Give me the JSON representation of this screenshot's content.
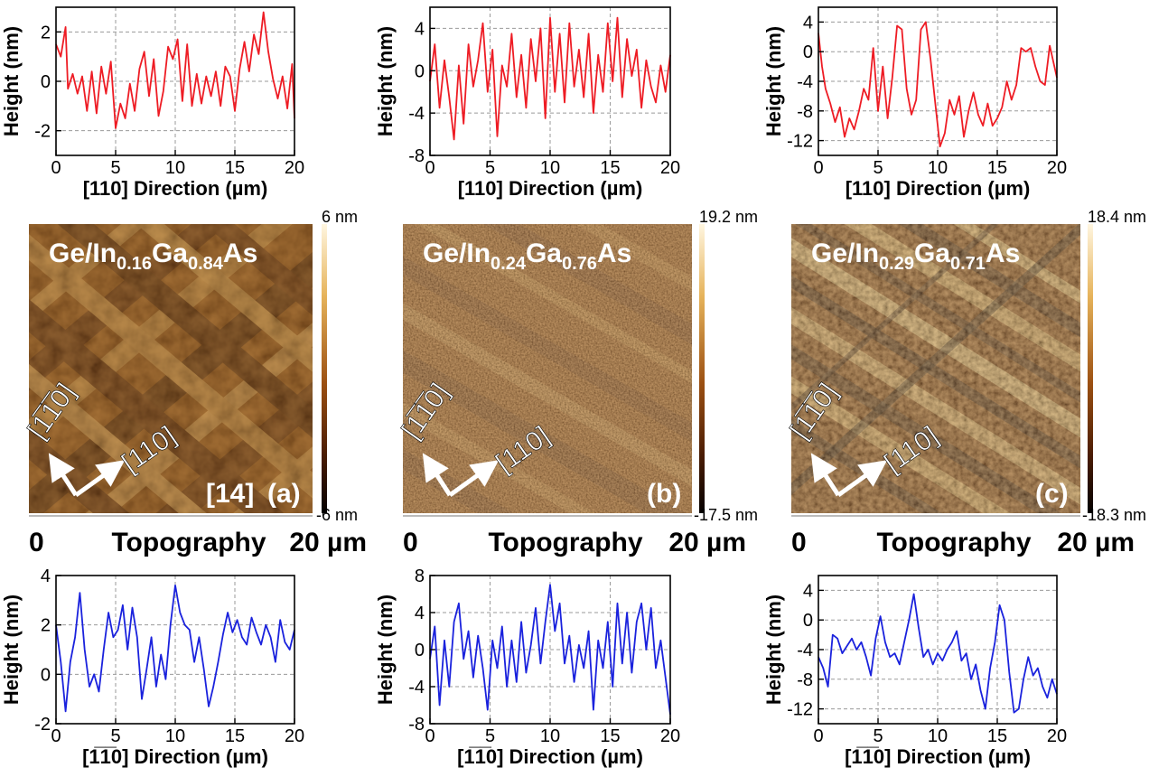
{
  "colors": {
    "profile_110": "#ee1c24",
    "profile_1m10": "#1a22dd",
    "afm_dark": "#1e0c03",
    "afm_mid": "#8a4a12",
    "afm_light": "#f2d9a0",
    "grid": "#9a9a9a"
  },
  "chart_data": [
    {
      "id": "a-top",
      "type": "line",
      "series_color": "#ee1c24",
      "xlabel": "[110] Direction (µm)",
      "ylabel": "Height (nm)",
      "xlim": [
        0,
        20
      ],
      "ylim": [
        -3,
        3
      ],
      "xticks": [
        "0",
        "5",
        "10",
        "15",
        "20"
      ],
      "xtick_values": [
        0,
        5,
        10,
        15,
        20
      ],
      "yticks": [
        "-2",
        "0",
        "2"
      ],
      "ytick_values": [
        -2,
        0,
        2
      ],
      "grid": true,
      "x": [
        0,
        0.4,
        0.8,
        1.0,
        1.4,
        1.8,
        2.2,
        2.6,
        3.0,
        3.4,
        3.8,
        4.2,
        4.6,
        5.0,
        5.4,
        5.8,
        6.2,
        6.6,
        7.0,
        7.4,
        7.8,
        8.2,
        8.6,
        9.0,
        9.4,
        9.8,
        10.2,
        10.6,
        11.0,
        11.4,
        11.8,
        12.2,
        12.6,
        13.0,
        13.4,
        13.8,
        14.2,
        14.6,
        15.0,
        15.4,
        15.8,
        16.2,
        16.6,
        17.0,
        17.4,
        17.8,
        18.2,
        18.6,
        19.0,
        19.4,
        19.8,
        20.0
      ],
      "y": [
        1.5,
        1.0,
        2.2,
        -0.3,
        0.3,
        -0.5,
        0.2,
        -1.2,
        0.4,
        -1.3,
        0.6,
        -0.5,
        0.8,
        -1.9,
        -0.9,
        -1.5,
        -0.1,
        -1.2,
        0.5,
        1.2,
        -0.6,
        0.9,
        -1.4,
        -0.4,
        1.4,
        0.9,
        1.7,
        -0.8,
        1.5,
        -1.0,
        0.3,
        -0.9,
        0.2,
        -0.6,
        0.4,
        -1.0,
        0.6,
        0.2,
        -1.2,
        0.5,
        1.6,
        0.4,
        1.9,
        1.1,
        2.8,
        1.2,
        0.1,
        -0.7,
        0.2,
        -1.1,
        0.7,
        -1.5
      ]
    },
    {
      "id": "b-top",
      "type": "line",
      "series_color": "#ee1c24",
      "xlabel": "[110] Direction (µm)",
      "ylabel": "Height (nm)",
      "xlim": [
        0,
        20
      ],
      "ylim": [
        -8,
        6
      ],
      "xticks": [
        "0",
        "5",
        "10",
        "15",
        "20"
      ],
      "xtick_values": [
        0,
        5,
        10,
        15,
        20
      ],
      "yticks": [
        "-8",
        "-4",
        "0",
        "4"
      ],
      "ytick_values": [
        -8,
        -4,
        0,
        4
      ],
      "grid": true,
      "x": [
        0,
        0.4,
        0.8,
        1.2,
        1.6,
        2.0,
        2.4,
        2.8,
        3.2,
        3.6,
        4.0,
        4.4,
        4.8,
        5.2,
        5.6,
        6.0,
        6.4,
        6.8,
        7.2,
        7.6,
        8.0,
        8.4,
        8.8,
        9.2,
        9.6,
        10.0,
        10.4,
        10.8,
        11.2,
        11.6,
        12.0,
        12.4,
        12.8,
        13.2,
        13.6,
        14.0,
        14.4,
        14.8,
        15.2,
        15.6,
        16.0,
        16.4,
        16.8,
        17.2,
        17.6,
        18.0,
        18.4,
        18.8,
        19.2,
        19.6,
        20.0
      ],
      "y": [
        -1.0,
        2.5,
        -3.5,
        1.0,
        -2.5,
        -6.5,
        0.5,
        -5.0,
        2.5,
        -1.5,
        1.0,
        4.5,
        -2.0,
        2.0,
        -6.2,
        0.5,
        -1.5,
        3.5,
        -2.5,
        1.5,
        -3.5,
        3.0,
        -1.0,
        4.0,
        -4.5,
        5.0,
        -2.0,
        3.5,
        -3.0,
        4.5,
        -1.5,
        2.0,
        -2.5,
        3.5,
        -4.0,
        1.5,
        -2.0,
        4.5,
        -1.0,
        5.0,
        -2.5,
        3.0,
        -0.5,
        2.0,
        -3.5,
        1.0,
        -1.5,
        -3.0,
        0.5,
        -2.0,
        1.5
      ]
    },
    {
      "id": "c-top",
      "type": "line",
      "series_color": "#ee1c24",
      "xlabel": "[110] Direction (µm)",
      "ylabel": "Height (nm)",
      "xlim": [
        0,
        20
      ],
      "ylim": [
        -14,
        6
      ],
      "xticks": [
        "0",
        "5",
        "10",
        "15",
        "20"
      ],
      "xtick_values": [
        0,
        5,
        10,
        15,
        20
      ],
      "yticks": [
        "-12",
        "-8",
        "-4",
        "0",
        "4"
      ],
      "ytick_values": [
        -12,
        -8,
        -4,
        0,
        4
      ],
      "grid": true,
      "x": [
        0,
        0.3,
        0.6,
        1.0,
        1.4,
        1.8,
        2.2,
        2.6,
        3.0,
        3.4,
        3.8,
        4.2,
        4.6,
        5.0,
        5.4,
        5.8,
        6.2,
        6.6,
        7.0,
        7.4,
        7.8,
        8.2,
        8.6,
        9.0,
        9.4,
        9.8,
        10.2,
        10.6,
        11.0,
        11.4,
        11.8,
        12.2,
        12.6,
        13.0,
        13.4,
        13.8,
        14.2,
        14.6,
        15.0,
        15.4,
        15.8,
        16.2,
        16.6,
        17.0,
        17.4,
        17.8,
        18.2,
        18.6,
        19.0,
        19.4,
        20.0
      ],
      "y": [
        2.5,
        -2.0,
        -5.0,
        -7.0,
        -9.5,
        -7.5,
        -11.5,
        -9.0,
        -10.5,
        -8.0,
        -5.0,
        -6.5,
        0.5,
        -8.0,
        -2.0,
        -9.0,
        -3.5,
        3.5,
        3.0,
        -5.0,
        -8.5,
        -6.5,
        3.0,
        4.0,
        -1.0,
        -7.0,
        -12.8,
        -11.0,
        -6.5,
        -8.5,
        -6.0,
        -11.5,
        -8.0,
        -5.5,
        -8.5,
        -10.0,
        -7.0,
        -10.0,
        -9.0,
        -7.5,
        -4.0,
        -6.5,
        -4.5,
        0.5,
        0.0,
        0.5,
        -2.0,
        -4.0,
        -4.5,
        0.8,
        -3.5
      ]
    },
    {
      "id": "a-bottom",
      "type": "line",
      "series_color": "#1a22dd",
      "xlabel": "[1̅1̅0] Direction (µm)",
      "ylabel": "Height (nm)",
      "xlim": [
        0,
        20
      ],
      "ylim": [
        -2,
        4
      ],
      "xticks": [
        "0",
        "5",
        "10",
        "15",
        "20"
      ],
      "xtick_values": [
        0,
        5,
        10,
        15,
        20
      ],
      "yticks": [
        "-2",
        "0",
        "2",
        "4"
      ],
      "ytick_values": [
        -2,
        0,
        2,
        4
      ],
      "grid": true,
      "x": [
        0,
        0.4,
        0.8,
        1.2,
        1.6,
        2.0,
        2.4,
        2.8,
        3.2,
        3.6,
        4.0,
        4.4,
        4.8,
        5.2,
        5.6,
        6.0,
        6.4,
        6.8,
        7.2,
        7.6,
        8.0,
        8.4,
        8.8,
        9.2,
        9.6,
        10.0,
        10.4,
        10.8,
        11.2,
        11.6,
        12.0,
        12.4,
        12.8,
        13.2,
        13.6,
        14.0,
        14.4,
        14.8,
        15.2,
        15.6,
        16.0,
        16.4,
        16.8,
        17.2,
        17.6,
        18.0,
        18.4,
        18.8,
        19.2,
        19.6,
        20.0
      ],
      "y": [
        2.0,
        0.5,
        -1.5,
        0.5,
        1.5,
        3.3,
        1.0,
        -0.5,
        0.0,
        -0.7,
        1.0,
        2.5,
        1.5,
        1.8,
        2.8,
        1.0,
        2.7,
        1.5,
        -1.0,
        0.2,
        1.5,
        -0.5,
        0.8,
        -0.2,
        2.0,
        3.6,
        2.5,
        2.0,
        1.8,
        0.5,
        1.5,
        0.2,
        -1.3,
        -0.5,
        0.5,
        1.6,
        2.5,
        1.7,
        2.2,
        1.5,
        1.2,
        2.3,
        1.7,
        1.2,
        2.0,
        1.5,
        0.5,
        2.2,
        1.3,
        1.0,
        1.8
      ]
    },
    {
      "id": "b-bottom",
      "type": "line",
      "series_color": "#1a22dd",
      "xlabel": "[1̅1̅0] Direction (µm)",
      "ylabel": "Height (nm)",
      "xlim": [
        0,
        20
      ],
      "ylim": [
        -8,
        8
      ],
      "xticks": [
        "0",
        "5",
        "10",
        "15",
        "20"
      ],
      "xtick_values": [
        0,
        5,
        10,
        15,
        20
      ],
      "yticks": [
        "-8",
        "-4",
        "0",
        "4",
        "8"
      ],
      "ytick_values": [
        -8,
        -4,
        0,
        4,
        8
      ],
      "grid": true,
      "x": [
        0,
        0.4,
        0.8,
        1.2,
        1.6,
        2.0,
        2.4,
        2.8,
        3.2,
        3.6,
        4.0,
        4.4,
        4.8,
        5.2,
        5.6,
        6.0,
        6.4,
        6.8,
        7.2,
        7.6,
        8.0,
        8.4,
        8.8,
        9.2,
        9.6,
        10.0,
        10.4,
        10.8,
        11.2,
        11.6,
        12.0,
        12.4,
        12.8,
        13.2,
        13.6,
        14.0,
        14.4,
        14.8,
        15.2,
        15.6,
        16.0,
        16.4,
        16.8,
        17.2,
        17.6,
        18.0,
        18.4,
        18.8,
        19.2,
        19.6,
        20.0
      ],
      "y": [
        -1.0,
        2.5,
        -6.0,
        1.0,
        -4.0,
        3.0,
        5.0,
        -1.0,
        2.0,
        -3.0,
        1.5,
        -2.0,
        -6.5,
        1.0,
        -2.0,
        2.5,
        -4.0,
        1.0,
        -3.5,
        3.0,
        -2.5,
        0.5,
        4.5,
        -1.5,
        3.0,
        7.0,
        2.0,
        5.0,
        -1.5,
        1.5,
        -3.5,
        0.5,
        -2.0,
        2.0,
        -6.5,
        1.0,
        -2.0,
        3.0,
        -4.0,
        5.0,
        -1.5,
        4.0,
        -2.5,
        3.0,
        5.0,
        0.0,
        4.5,
        -2.0,
        1.0,
        -3.0,
        -7.0
      ]
    },
    {
      "id": "c-bottom",
      "type": "line",
      "series_color": "#1a22dd",
      "xlabel": "[1̅1̅0] Direction (µm)",
      "ylabel": "Height (nm)",
      "xlim": [
        0,
        20
      ],
      "ylim": [
        -14,
        6
      ],
      "xticks": [
        "0",
        "5",
        "10",
        "15",
        "20"
      ],
      "xtick_values": [
        0,
        5,
        10,
        15,
        20
      ],
      "yticks": [
        "-12",
        "-8",
        "-4",
        "0",
        "4"
      ],
      "ytick_values": [
        -12,
        -8,
        -4,
        0,
        4
      ],
      "grid": true,
      "x": [
        0,
        0.4,
        0.8,
        1.2,
        1.6,
        2.0,
        2.4,
        2.8,
        3.2,
        3.6,
        4.0,
        4.4,
        4.8,
        5.2,
        5.6,
        6.0,
        6.4,
        6.8,
        7.2,
        7.6,
        8.0,
        8.4,
        8.8,
        9.2,
        9.6,
        10.0,
        10.4,
        10.8,
        11.2,
        11.6,
        12.0,
        12.4,
        12.8,
        13.2,
        13.6,
        14.0,
        14.4,
        14.8,
        15.2,
        15.6,
        16.0,
        16.4,
        16.8,
        17.2,
        17.6,
        18.0,
        18.4,
        18.8,
        19.2,
        19.6,
        20.0
      ],
      "y": [
        -5.0,
        -6.5,
        -9.0,
        -2.0,
        -2.5,
        -4.5,
        -3.5,
        -2.5,
        -4.0,
        -3.0,
        -5.0,
        -7.5,
        -2.5,
        0.5,
        -3.0,
        -5.0,
        -4.5,
        -6.0,
        -3.0,
        0.0,
        3.5,
        -1.0,
        -5.0,
        -4.0,
        -6.0,
        -4.5,
        -5.5,
        -4.0,
        -3.0,
        -1.5,
        -5.5,
        -4.5,
        -8.0,
        -6.0,
        -9.5,
        -12.0,
        -6.5,
        -3.0,
        2.0,
        0.0,
        -7.0,
        -12.5,
        -12.0,
        -8.0,
        -5.0,
        -7.5,
        -6.5,
        -9.0,
        -10.5,
        -8.0,
        -10.0
      ]
    }
  ],
  "afm_images": [
    {
      "id": "a",
      "sample": {
        "base": "Ge/In",
        "sub1": "0.16",
        "mid": "Ga",
        "sub2": "0.84",
        "tail": "As"
      },
      "colorbar_max": "6 nm",
      "colorbar_min": "-6 nm",
      "dir_1m10": "[1̅1̅0]",
      "dir_110": "[110]",
      "reference": "[14]",
      "panel_label": "(a)",
      "scale_start": "0",
      "scale_caption": "Topography",
      "scale_end": "20 µm",
      "pattern": "crosshatch-coarse"
    },
    {
      "id": "b",
      "sample": {
        "base": "Ge/In",
        "sub1": "0.24",
        "mid": "Ga",
        "sub2": "0.76",
        "tail": "As"
      },
      "colorbar_max": "19.2 nm",
      "colorbar_min": "-17.5 nm",
      "dir_1m10": "[1̅1̅0]",
      "dir_110": "[110]",
      "reference": "",
      "panel_label": "(b)",
      "scale_start": "0",
      "scale_caption": "Topography",
      "scale_end": "20 µm",
      "pattern": "diagonal-fine"
    },
    {
      "id": "c",
      "sample": {
        "base": "Ge/In",
        "sub1": "0.29",
        "mid": "Ga",
        "sub2": "0.71",
        "tail": "As"
      },
      "colorbar_max": "18.4 nm",
      "colorbar_min": "-18.3 nm",
      "dir_1m10": "[1̅1̅0]",
      "dir_110": "[110]",
      "reference": "",
      "panel_label": "(c)",
      "scale_start": "0",
      "scale_caption": "Topography",
      "scale_end": "20 µm",
      "pattern": "diagonal-bright"
    }
  ]
}
